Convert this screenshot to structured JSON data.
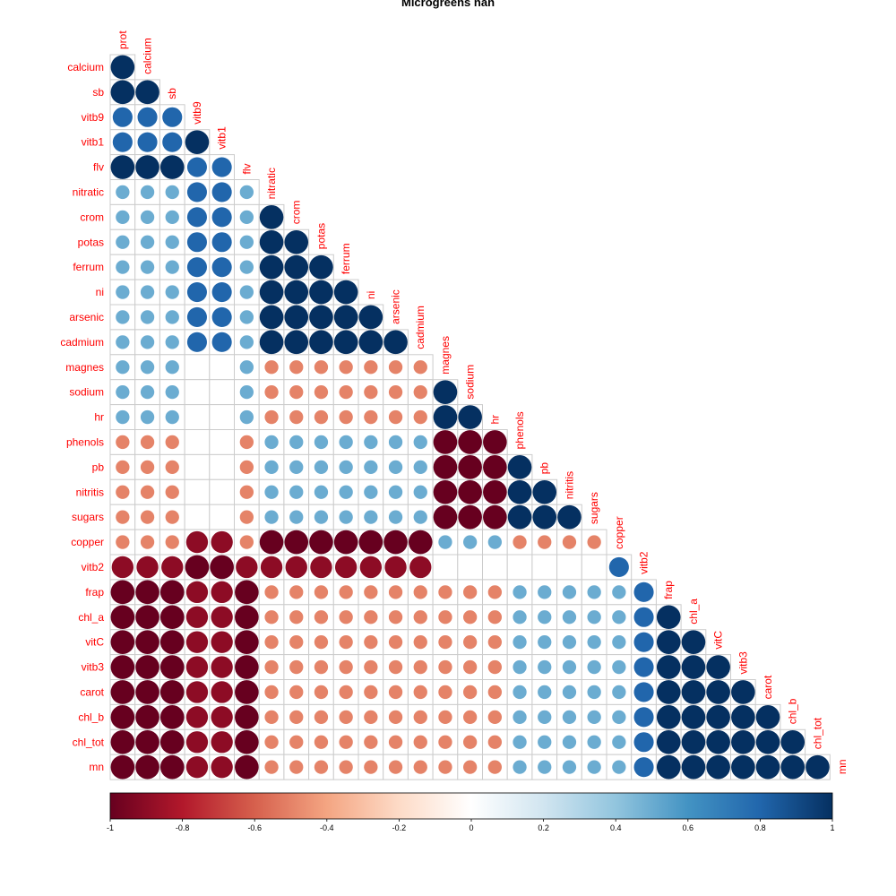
{
  "chart_data": {
    "type": "heatmap",
    "title": "Microgreens nan",
    "variables": [
      "prot",
      "calcium",
      "sb",
      "vitb9",
      "vitb1",
      "flv",
      "nitratic",
      "crom",
      "potas",
      "ferrum",
      "ni",
      "arsenic",
      "cadmium",
      "magnes",
      "sodium",
      "hr",
      "phenols",
      "pb",
      "nitritis",
      "sugars",
      "copper",
      "vitb2",
      "frap",
      "chl_a",
      "vitC",
      "vitb3",
      "carot",
      "chl_b",
      "chl_tot",
      "mn"
    ],
    "row_variables": [
      "calcium",
      "sb",
      "vitb9",
      "vitb1",
      "flv",
      "nitratic",
      "crom",
      "potas",
      "ferrum",
      "ni",
      "arsenic",
      "cadmium",
      "magnes",
      "sodium",
      "hr",
      "phenols",
      "pb",
      "nitritis",
      "sugars",
      "copper",
      "vitb2",
      "frap",
      "chl_a",
      "vitC",
      "vitb3",
      "carot",
      "chl_b",
      "chl_tot",
      "mn"
    ],
    "matrix": [
      [
        1
      ],
      [
        1,
        1
      ],
      [
        0.8,
        0.8,
        0.8
      ],
      [
        0.8,
        0.8,
        0.8,
        1
      ],
      [
        1,
        1,
        1,
        0.8,
        0.8
      ],
      [
        0.5,
        0.5,
        0.5,
        0.8,
        0.8,
        0.5
      ],
      [
        0.5,
        0.5,
        0.5,
        0.8,
        0.8,
        0.5,
        1
      ],
      [
        0.5,
        0.5,
        0.5,
        0.8,
        0.8,
        0.5,
        1,
        1
      ],
      [
        0.5,
        0.5,
        0.5,
        0.8,
        0.8,
        0.5,
        1,
        1,
        1
      ],
      [
        0.5,
        0.5,
        0.5,
        0.8,
        0.8,
        0.5,
        1,
        1,
        1,
        1
      ],
      [
        0.5,
        0.5,
        0.5,
        0.8,
        0.8,
        0.5,
        1,
        1,
        1,
        1,
        1
      ],
      [
        0.5,
        0.5,
        0.5,
        0.8,
        0.8,
        0.5,
        1,
        1,
        1,
        1,
        1,
        1
      ],
      [
        0.5,
        0.5,
        0.5,
        null,
        null,
        0.5,
        -0.5,
        -0.5,
        -0.5,
        -0.5,
        -0.5,
        -0.5,
        -0.5
      ],
      [
        0.5,
        0.5,
        0.5,
        null,
        null,
        0.5,
        -0.5,
        -0.5,
        -0.5,
        -0.5,
        -0.5,
        -0.5,
        -0.5,
        1
      ],
      [
        0.5,
        0.5,
        0.5,
        null,
        null,
        0.5,
        -0.5,
        -0.5,
        -0.5,
        -0.5,
        -0.5,
        -0.5,
        -0.5,
        1,
        1
      ],
      [
        -0.5,
        -0.5,
        -0.5,
        null,
        null,
        -0.5,
        0.5,
        0.5,
        0.5,
        0.5,
        0.5,
        0.5,
        0.5,
        -1,
        -1,
        -1
      ],
      [
        -0.5,
        -0.5,
        -0.5,
        null,
        null,
        -0.5,
        0.5,
        0.5,
        0.5,
        0.5,
        0.5,
        0.5,
        0.5,
        -1,
        -1,
        -1,
        1
      ],
      [
        -0.5,
        -0.5,
        -0.5,
        null,
        null,
        -0.5,
        0.5,
        0.5,
        0.5,
        0.5,
        0.5,
        0.5,
        0.5,
        -1,
        -1,
        -1,
        1,
        1
      ],
      [
        -0.5,
        -0.5,
        -0.5,
        null,
        null,
        -0.5,
        0.5,
        0.5,
        0.5,
        0.5,
        0.5,
        0.5,
        0.5,
        -1,
        -1,
        -1,
        1,
        1,
        1
      ],
      [
        -0.5,
        -0.5,
        -0.5,
        -0.9,
        -0.9,
        -0.5,
        -1,
        -1,
        -1,
        -1,
        -1,
        -1,
        -1,
        0.5,
        0.5,
        0.5,
        -0.5,
        -0.5,
        -0.5,
        -0.5
      ],
      [
        -0.9,
        -0.9,
        -0.9,
        -1,
        -1,
        -0.9,
        -0.9,
        -0.9,
        -0.9,
        -0.9,
        -0.9,
        -0.9,
        -0.9,
        null,
        null,
        null,
        null,
        null,
        null,
        null,
        0.8
      ],
      [
        -1,
        -1,
        -1,
        -0.9,
        -0.9,
        -1,
        -0.5,
        -0.5,
        -0.5,
        -0.5,
        -0.5,
        -0.5,
        -0.5,
        -0.5,
        -0.5,
        -0.5,
        0.5,
        0.5,
        0.5,
        0.5,
        0.5,
        0.8
      ],
      [
        -1,
        -1,
        -1,
        -0.9,
        -0.9,
        -1,
        -0.5,
        -0.5,
        -0.5,
        -0.5,
        -0.5,
        -0.5,
        -0.5,
        -0.5,
        -0.5,
        -0.5,
        0.5,
        0.5,
        0.5,
        0.5,
        0.5,
        0.8,
        1
      ],
      [
        -1,
        -1,
        -1,
        -0.9,
        -0.9,
        -1,
        -0.5,
        -0.5,
        -0.5,
        -0.5,
        -0.5,
        -0.5,
        -0.5,
        -0.5,
        -0.5,
        -0.5,
        0.5,
        0.5,
        0.5,
        0.5,
        0.5,
        0.8,
        1,
        1
      ],
      [
        -1,
        -1,
        -1,
        -0.9,
        -0.9,
        -1,
        -0.5,
        -0.5,
        -0.5,
        -0.5,
        -0.5,
        -0.5,
        -0.5,
        -0.5,
        -0.5,
        -0.5,
        0.5,
        0.5,
        0.5,
        0.5,
        0.5,
        0.8,
        1,
        1,
        1
      ],
      [
        -1,
        -1,
        -1,
        -0.9,
        -0.9,
        -1,
        -0.5,
        -0.5,
        -0.5,
        -0.5,
        -0.5,
        -0.5,
        -0.5,
        -0.5,
        -0.5,
        -0.5,
        0.5,
        0.5,
        0.5,
        0.5,
        0.5,
        0.8,
        1,
        1,
        1,
        1
      ],
      [
        -1,
        -1,
        -1,
        -0.9,
        -0.9,
        -1,
        -0.5,
        -0.5,
        -0.5,
        -0.5,
        -0.5,
        -0.5,
        -0.5,
        -0.5,
        -0.5,
        -0.5,
        0.5,
        0.5,
        0.5,
        0.5,
        0.5,
        0.8,
        1,
        1,
        1,
        1,
        1
      ],
      [
        -1,
        -1,
        -1,
        -0.9,
        -0.9,
        -1,
        -0.5,
        -0.5,
        -0.5,
        -0.5,
        -0.5,
        -0.5,
        -0.5,
        -0.5,
        -0.5,
        -0.5,
        0.5,
        0.5,
        0.5,
        0.5,
        0.5,
        0.8,
        1,
        1,
        1,
        1,
        1,
        1
      ],
      [
        -1,
        -1,
        -1,
        -0.9,
        -0.9,
        -1,
        -0.5,
        -0.5,
        -0.5,
        -0.5,
        -0.5,
        -0.5,
        -0.5,
        -0.5,
        -0.5,
        -0.5,
        0.5,
        0.5,
        0.5,
        0.5,
        0.5,
        0.8,
        1,
        1,
        1,
        1,
        1,
        1,
        1
      ]
    ],
    "colorbar": {
      "ticks": [
        "-1",
        "-0.8",
        "-0.6",
        "-0.4",
        "-0.2",
        "0",
        "0.2",
        "0.4",
        "0.6",
        "0.8",
        "1"
      ],
      "range": [
        -1,
        1
      ],
      "placement": "bottom"
    },
    "label_color": "#ff0000",
    "palette": [
      "#67001f",
      "#b2182b",
      "#d6604d",
      "#f4a582",
      "#fddbc7",
      "#ffffff",
      "#d1e5f0",
      "#92c5de",
      "#4393c3",
      "#2166ac",
      "#053061"
    ]
  }
}
